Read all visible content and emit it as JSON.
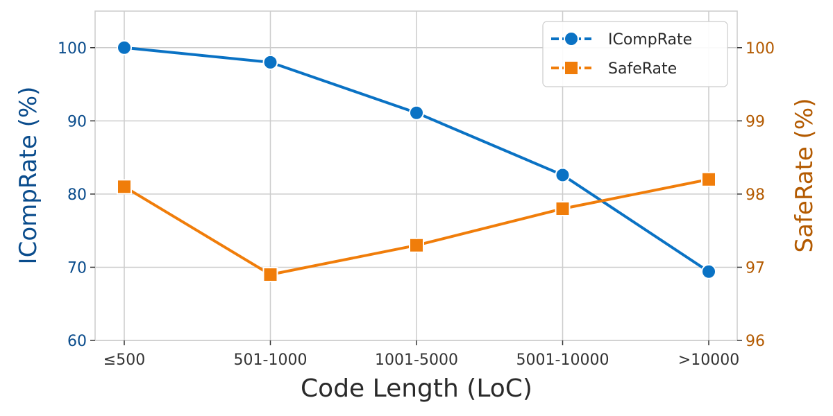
{
  "chart_data": {
    "type": "line",
    "categories": [
      "≤500",
      "501-1000",
      "1001-5000",
      "5001-10000",
      ">10000"
    ],
    "xlabel": "Code Length (LoC)",
    "ylabel_left": "ICompRate (%)",
    "ylabel_right": "SafeRate (%)",
    "ylim_left": [
      60,
      105
    ],
    "ylim_right": [
      96,
      100.5
    ],
    "yticks_left": [
      60,
      70,
      80,
      90,
      100
    ],
    "yticks_right": [
      96,
      97,
      98,
      99,
      100
    ],
    "grid": true,
    "legend_position": "top-right",
    "series": [
      {
        "name": "ICompRate",
        "axis": "left",
        "marker": "circle",
        "color": "#0a72c4",
        "values": [
          100,
          98,
          91.1,
          82.6,
          69.4
        ]
      },
      {
        "name": "SafeRate",
        "axis": "right",
        "marker": "square",
        "color": "#f07d0a",
        "values": [
          98.1,
          96.9,
          97.3,
          97.8,
          98.2
        ]
      }
    ],
    "colors": {
      "left_axis": "#0a4c8c",
      "right_axis": "#b35a00",
      "x_text": "#333333",
      "grid": "#cccccc",
      "frame": "#cccccc"
    }
  }
}
